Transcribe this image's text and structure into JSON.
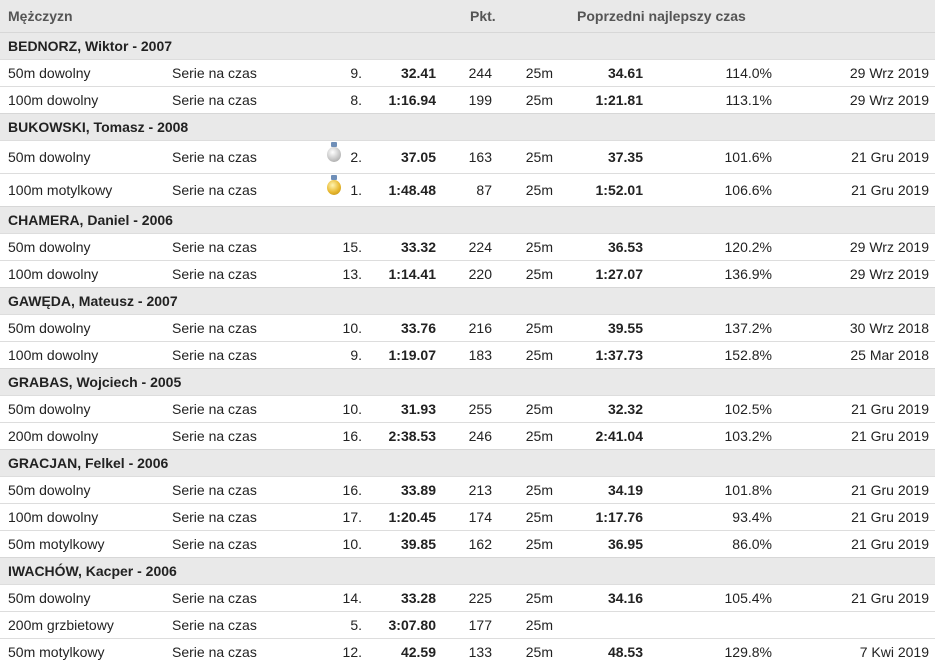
{
  "header": {
    "category": "Mężczyzn",
    "points_label": "Pkt.",
    "previous_best_label": "Poprzedni najlepszy czas"
  },
  "athletes": [
    {
      "name": "BEDNORZ, Wiktor - 2007",
      "events": [
        {
          "event": "50m dowolny",
          "heat": "Serie na czas",
          "medal": "",
          "place": "9.",
          "time": "32.41",
          "points": "244",
          "pool": "25m",
          "prev_time": "34.61",
          "pct": "114.0%",
          "date": "29 Wrz 2019"
        },
        {
          "event": "100m dowolny",
          "heat": "Serie na czas",
          "medal": "",
          "place": "8.",
          "time": "1:16.94",
          "points": "199",
          "pool": "25m",
          "prev_time": "1:21.81",
          "pct": "113.1%",
          "date": "29 Wrz 2019"
        }
      ]
    },
    {
      "name": "BUKOWSKI, Tomasz - 2008",
      "events": [
        {
          "event": "50m dowolny",
          "heat": "Serie na czas",
          "medal": "silver",
          "place": "2.",
          "time": "37.05",
          "points": "163",
          "pool": "25m",
          "prev_time": "37.35",
          "pct": "101.6%",
          "date": "21 Gru 2019"
        },
        {
          "event": "100m motylkowy",
          "heat": "Serie na czas",
          "medal": "gold",
          "place": "1.",
          "time": "1:48.48",
          "points": "87",
          "pool": "25m",
          "prev_time": "1:52.01",
          "pct": "106.6%",
          "date": "21 Gru 2019"
        }
      ]
    },
    {
      "name": "CHAMERA, Daniel - 2006",
      "events": [
        {
          "event": "50m dowolny",
          "heat": "Serie na czas",
          "medal": "",
          "place": "15.",
          "time": "33.32",
          "points": "224",
          "pool": "25m",
          "prev_time": "36.53",
          "pct": "120.2%",
          "date": "29 Wrz 2019"
        },
        {
          "event": "100m dowolny",
          "heat": "Serie na czas",
          "medal": "",
          "place": "13.",
          "time": "1:14.41",
          "points": "220",
          "pool": "25m",
          "prev_time": "1:27.07",
          "pct": "136.9%",
          "date": "29 Wrz 2019"
        }
      ]
    },
    {
      "name": "GAWĘDA, Mateusz - 2007",
      "events": [
        {
          "event": "50m dowolny",
          "heat": "Serie na czas",
          "medal": "",
          "place": "10.",
          "time": "33.76",
          "points": "216",
          "pool": "25m",
          "prev_time": "39.55",
          "pct": "137.2%",
          "date": "30 Wrz 2018"
        },
        {
          "event": "100m dowolny",
          "heat": "Serie na czas",
          "medal": "",
          "place": "9.",
          "time": "1:19.07",
          "points": "183",
          "pool": "25m",
          "prev_time": "1:37.73",
          "pct": "152.8%",
          "date": "25 Mar 2018"
        }
      ]
    },
    {
      "name": "GRABAS, Wojciech - 2005",
      "events": [
        {
          "event": "50m dowolny",
          "heat": "Serie na czas",
          "medal": "",
          "place": "10.",
          "time": "31.93",
          "points": "255",
          "pool": "25m",
          "prev_time": "32.32",
          "pct": "102.5%",
          "date": "21 Gru 2019"
        },
        {
          "event": "200m dowolny",
          "heat": "Serie na czas",
          "medal": "",
          "place": "16.",
          "time": "2:38.53",
          "points": "246",
          "pool": "25m",
          "prev_time": "2:41.04",
          "pct": "103.2%",
          "date": "21 Gru 2019"
        }
      ]
    },
    {
      "name": "GRACJAN, Felkel - 2006",
      "events": [
        {
          "event": "50m dowolny",
          "heat": "Serie na czas",
          "medal": "",
          "place": "16.",
          "time": "33.89",
          "points": "213",
          "pool": "25m",
          "prev_time": "34.19",
          "pct": "101.8%",
          "date": "21 Gru 2019"
        },
        {
          "event": "100m dowolny",
          "heat": "Serie na czas",
          "medal": "",
          "place": "17.",
          "time": "1:20.45",
          "points": "174",
          "pool": "25m",
          "prev_time": "1:17.76",
          "pct": "93.4%",
          "date": "21 Gru 2019"
        },
        {
          "event": "50m motylkowy",
          "heat": "Serie na czas",
          "medal": "",
          "place": "10.",
          "time": "39.85",
          "points": "162",
          "pool": "25m",
          "prev_time": "36.95",
          "pct": "86.0%",
          "date": "21 Gru 2019"
        }
      ]
    },
    {
      "name": "IWACHÓW, Kacper - 2006",
      "events": [
        {
          "event": "50m dowolny",
          "heat": "Serie na czas",
          "medal": "",
          "place": "14.",
          "time": "33.28",
          "points": "225",
          "pool": "25m",
          "prev_time": "34.16",
          "pct": "105.4%",
          "date": "21 Gru 2019"
        },
        {
          "event": "200m grzbietowy",
          "heat": "Serie na czas",
          "medal": "",
          "place": "5.",
          "time": "3:07.80",
          "points": "177",
          "pool": "25m",
          "prev_time": "",
          "pct": "",
          "date": ""
        },
        {
          "event": "50m motylkowy",
          "heat": "Serie na czas",
          "medal": "",
          "place": "12.",
          "time": "42.59",
          "points": "133",
          "pool": "25m",
          "prev_time": "48.53",
          "pct": "129.8%",
          "date": "7 Kwi 2019"
        }
      ]
    }
  ]
}
